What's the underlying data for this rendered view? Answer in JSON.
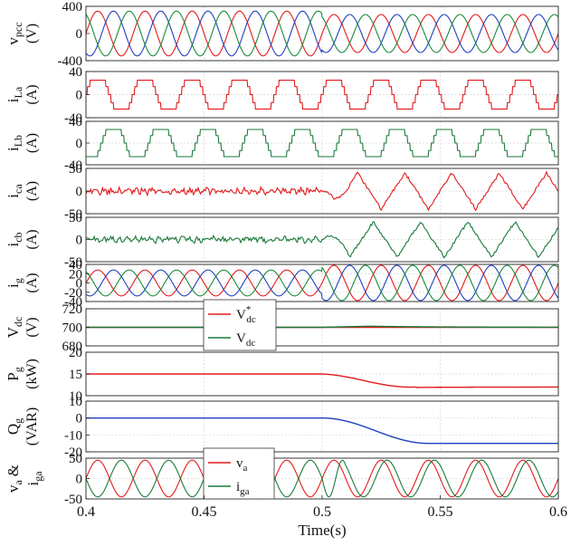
{
  "chart_data": {
    "type": "line",
    "xlabel": "Time(s)",
    "xlim": [
      0.4,
      0.6
    ],
    "xticks": [
      0.4,
      0.45,
      0.5,
      0.55,
      0.6
    ],
    "xtick_labels": [
      "0.4",
      "0.45",
      "0.5",
      "0.55",
      "0.6"
    ],
    "grid": true,
    "panels": [
      {
        "id": "vpcc",
        "ylabel_main": "v",
        "ylabel_sub": "pcc",
        "ylabel_unit": "(V)",
        "ylim": [
          -400,
          400
        ],
        "yticks": [
          -400,
          0,
          400
        ],
        "ytick_labels": [
          "-400",
          "0",
          "400"
        ],
        "series": [
          {
            "kind": "three_phase_sine",
            "freq_hz": 50,
            "amp_before": 330,
            "amp_after": 280,
            "switch_t": 0.5,
            "colors": [
              "#e31a1c",
              "#1f3fbf",
              "#1a8a3a"
            ]
          }
        ]
      },
      {
        "id": "iLa",
        "ylabel_main": "i",
        "ylabel_sub": "La",
        "ylabel_unit": "(A)",
        "ylim": [
          -40,
          40
        ],
        "yticks": [
          -40,
          0,
          40
        ],
        "ytick_labels": [
          "-40",
          "0",
          "40"
        ],
        "series": [
          {
            "kind": "quasi_square",
            "freq_hz": 50,
            "amp": 25,
            "phase_deg": 0,
            "color": "#e31a1c"
          }
        ]
      },
      {
        "id": "iLb",
        "ylabel_main": "i",
        "ylabel_sub": "Lb",
        "ylabel_unit": "(A)",
        "ylim": [
          -40,
          40
        ],
        "yticks": [
          -40,
          0,
          40
        ],
        "ytick_labels": [
          "-40",
          "0",
          "40"
        ],
        "series": [
          {
            "kind": "quasi_square",
            "freq_hz": 50,
            "amp": 25,
            "phase_deg": -120,
            "color": "#1a7a3a"
          }
        ]
      },
      {
        "id": "ica",
        "ylabel_main": "i",
        "ylabel_sub": "ca",
        "ylabel_unit": "(A)",
        "ylim": [
          -50,
          50
        ],
        "yticks": [
          -50,
          0,
          50
        ],
        "ytick_labels": [
          "-50",
          "0",
          "50"
        ],
        "series": [
          {
            "kind": "compensator",
            "freq_hz": 50,
            "ripple_before": 10,
            "amp_after": 40,
            "phase_deg": 0,
            "switch_t": 0.5,
            "color": "#e31a1c"
          }
        ]
      },
      {
        "id": "icb",
        "ylabel_main": "i",
        "ylabel_sub": "cb",
        "ylabel_unit": "(A)",
        "ylim": [
          -50,
          50
        ],
        "yticks": [
          -50,
          0,
          50
        ],
        "ytick_labels": [
          "-50",
          "0",
          "50"
        ],
        "series": [
          {
            "kind": "compensator",
            "freq_hz": 50,
            "ripple_before": 10,
            "amp_after": 40,
            "phase_deg": -120,
            "switch_t": 0.5,
            "color": "#1a7a3a"
          }
        ]
      },
      {
        "id": "ig",
        "ylabel_main": "i",
        "ylabel_sub": "g",
        "ylabel_unit": "(A)",
        "ylim": [
          -40,
          40
        ],
        "yticks": [
          -40,
          -20,
          0,
          20,
          40
        ],
        "ytick_labels": [
          "-40",
          "-20",
          "0",
          "20",
          "40"
        ],
        "series": [
          {
            "kind": "three_phase_sine",
            "freq_hz": 50,
            "amp_before": 28,
            "amp_after": 38,
            "switch_t": 0.5,
            "colors": [
              "#e31a1c",
              "#1f3fbf",
              "#1a8a3a"
            ]
          }
        ]
      },
      {
        "id": "vdc",
        "ylabel_main": "V",
        "ylabel_sub": "dc",
        "ylabel_unit": "(V)",
        "ylim": [
          680,
          720
        ],
        "yticks": [
          680,
          700,
          720
        ],
        "ytick_labels": [
          "680",
          "700",
          "720"
        ],
        "series": [
          {
            "name_main": "V",
            "name_sub": "dc",
            "name_sup": "*",
            "kind": "constant",
            "value": 700,
            "color": "#e31a1c"
          },
          {
            "name_main": "V",
            "name_sub": "dc",
            "kind": "dc_bump",
            "value": 700,
            "bump": 1.2,
            "bump_start": 0.5,
            "bump_peak": 0.52,
            "color": "#1a7a3a"
          }
        ]
      },
      {
        "id": "pg",
        "ylabel_main": "P",
        "ylabel_sub": "g",
        "ylabel_unit": "(kW)",
        "ylim": [
          10,
          20
        ],
        "yticks": [
          10,
          15,
          20
        ],
        "ytick_labels": [
          "10",
          "15",
          "20"
        ],
        "series": [
          {
            "kind": "step_down",
            "before": 15,
            "after": 12,
            "t_start": 0.5,
            "t_end": 0.54,
            "undershoot": 0.3,
            "color": "#e31a1c"
          }
        ]
      },
      {
        "id": "qg",
        "ylabel_main": "Q",
        "ylabel_sub": "g",
        "ylabel_unit": "(VAR)",
        "ylim": [
          -20,
          10
        ],
        "yticks": [
          -20,
          -10,
          0,
          10
        ],
        "ytick_labels": [
          "-20",
          "-10",
          "0",
          "10"
        ],
        "series": [
          {
            "kind": "step_down",
            "before": 0,
            "after": -15,
            "t_start": 0.5,
            "t_end": 0.545,
            "undershoot": 0,
            "color": "#1f3fbf"
          }
        ]
      },
      {
        "id": "vaiga",
        "ylabel_main": "v",
        "ylabel_sub": "a",
        "ylabel_amp": "&",
        "ylabel_main2": "i",
        "ylabel_sub2": "ga",
        "ylim": [
          -50,
          50
        ],
        "yticks": [
          -50,
          0,
          50
        ],
        "ytick_labels": [
          "-50",
          "0",
          "50"
        ],
        "series": [
          {
            "name_main": "v",
            "name_sub": "a",
            "kind": "sine",
            "freq_hz": 50,
            "amp": 45,
            "phase_deg": 0,
            "color": "#e31a1c"
          },
          {
            "name_main": "i",
            "name_sub": "ga",
            "kind": "sine_shift",
            "freq_hz": 50,
            "amp": 45,
            "phase_before_deg": -180,
            "phase_after_deg": -45,
            "switch_t": 0.5,
            "color": "#1a7a3a"
          }
        ]
      }
    ]
  }
}
